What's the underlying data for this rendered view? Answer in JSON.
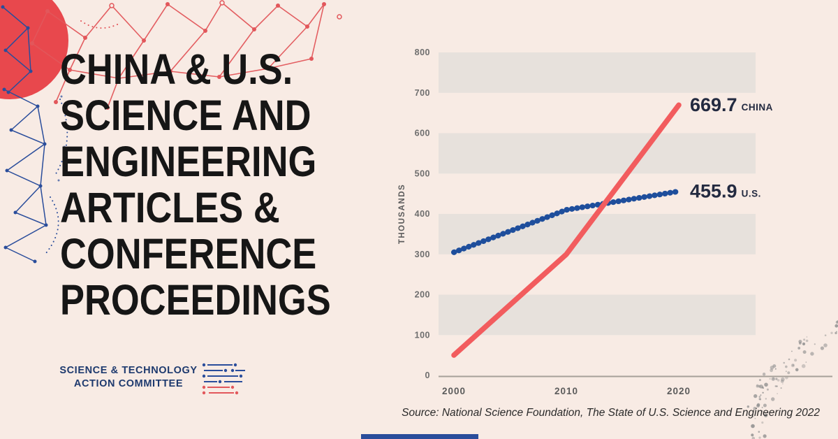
{
  "page": {
    "background": "#f8ebe4",
    "title_lines": [
      "CHINA & U.S.",
      "SCIENCE AND",
      "ENGINEERING",
      "ARTICLES &",
      "CONFERENCE",
      "PROCEEDINGS"
    ],
    "source_text": "Source: National Science Foundation, The State of U.S. Science and Engineering 2022"
  },
  "logo": {
    "line1": "SCIENCE & TECHNOLOGY",
    "line2": "ACTION COMMITTEE"
  },
  "colors": {
    "background": "#f8ebe4",
    "band": "#e7e1dc",
    "china": "#f25c5e",
    "us": "#1e4e9c",
    "navy": "#1e3a6e",
    "title_text": "#161616",
    "end_label": "#232a40",
    "axis": "#a6a099",
    "tick_text": "#6e6e6e",
    "deco_red": "#e2575b",
    "deco_blue": "#2a4d9b",
    "deco_gray": "#8f8f8f"
  },
  "chart_data": {
    "type": "line",
    "title": "",
    "units": "thousands",
    "ylabel": "THOUSANDS",
    "xlabel": "",
    "ylim": [
      0,
      800
    ],
    "ytick_step": 100,
    "yticks": [
      "0",
      "100",
      "200",
      "300",
      "400",
      "500",
      "600",
      "700",
      "800"
    ],
    "x": [
      2000,
      2010,
      2020
    ],
    "xticks": [
      "2000",
      "2010",
      "2020"
    ],
    "grid_bands": "alternating horizontal stripes between 100-200, 300-400, 500-600, 700-800",
    "legend_position": "end-of-line labels",
    "series": [
      {
        "name": "CHINA",
        "color_key": "china",
        "style": "solid",
        "values": [
          50,
          300,
          669.7
        ],
        "end_label": "669.7"
      },
      {
        "name": "U.S.",
        "color_key": "us",
        "style": "dotted",
        "values": [
          305,
          410,
          455.9
        ],
        "end_label": "455.9"
      }
    ]
  }
}
